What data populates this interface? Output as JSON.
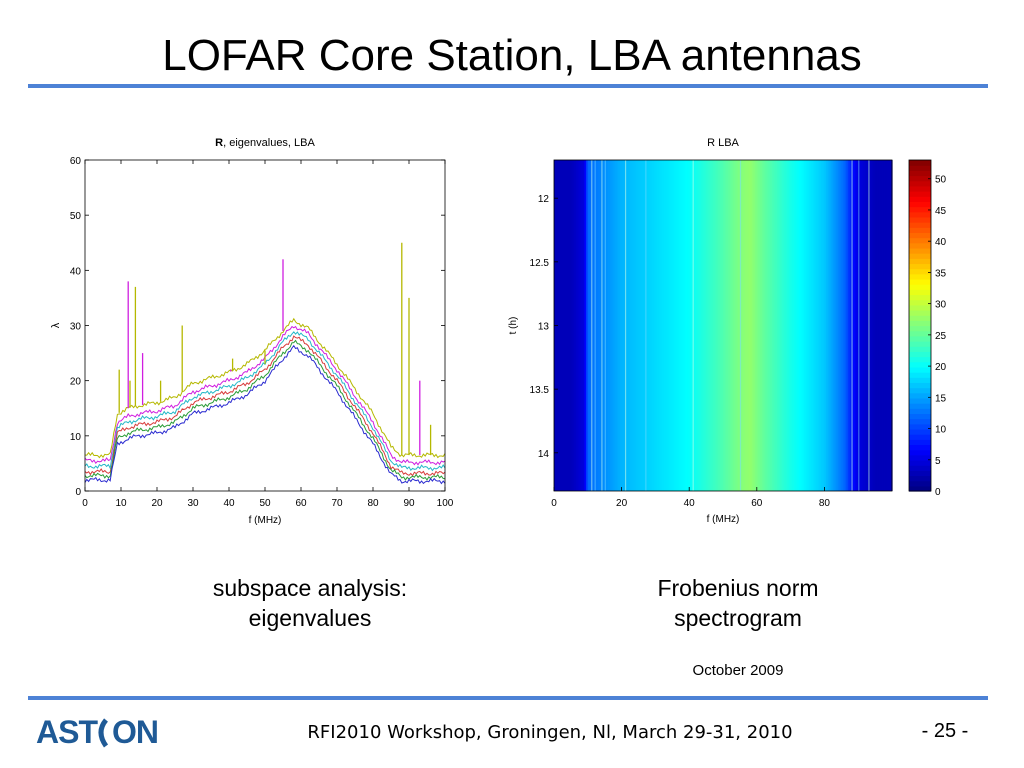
{
  "slide": {
    "title": "LOFAR Core Station, LBA antennas",
    "footer": "RFI2010 Workshop, Groningen, Nl, March 29-31, 2010",
    "page_number": "- 25 -",
    "date": "October 2009",
    "logo_text": "ASTRON"
  },
  "captions": {
    "left_line1": "subspace analysis:",
    "left_line2": "eigenvalues",
    "right_line1": "Frobenius norm",
    "right_line2": "spectrogram"
  },
  "colors": {
    "accent_rule": "#4d82d6",
    "logo": "#1f5a96",
    "series": [
      "#b5b800",
      "#d01ee0",
      "#24b8c8",
      "#d83a3a",
      "#2a9c36",
      "#2a2ad0",
      "#e08a00"
    ]
  },
  "chart_data": [
    {
      "type": "line",
      "title_bold": "R",
      "title": ", eigenvalues, LBA",
      "xlabel": "f (MHz)",
      "ylabel": "λ",
      "xlim": [
        0,
        100
      ],
      "ylim": [
        0,
        60
      ],
      "xticks": [
        0,
        10,
        20,
        30,
        40,
        50,
        60,
        70,
        80,
        90,
        100
      ],
      "yticks": [
        0,
        10,
        20,
        30,
        40,
        50,
        60
      ],
      "grid": false,
      "x": [
        0,
        7,
        9,
        12,
        15,
        20,
        25,
        30,
        35,
        40,
        45,
        50,
        55,
        58,
        62,
        70,
        80,
        85,
        88,
        90,
        95,
        100
      ],
      "series": [
        {
          "values": [
            6.5,
            6.5,
            14,
            15,
            15.5,
            16,
            17,
            19.5,
            20.5,
            21.5,
            23,
            25.5,
            29,
            31,
            29.5,
            23,
            14,
            8,
            6.5,
            6.5,
            6.5,
            6.5
          ]
        },
        {
          "values": [
            5.5,
            5.5,
            12.5,
            13.5,
            14,
            14.5,
            15.5,
            18,
            19,
            20,
            21.5,
            24,
            28,
            30,
            28.5,
            22,
            12.5,
            6.5,
            5.2,
            5.2,
            5.2,
            5.2
          ]
        },
        {
          "values": [
            4.5,
            4.5,
            11.5,
            12.5,
            13,
            13.5,
            14.5,
            17,
            18,
            19,
            20.5,
            23,
            27,
            29,
            27.5,
            21,
            11.5,
            5.5,
            4.2,
            4.2,
            4.2,
            4.2
          ]
        },
        {
          "values": [
            3.5,
            3.5,
            10.5,
            11.5,
            12,
            12.5,
            13.5,
            16,
            17,
            18,
            19.5,
            22,
            26,
            28,
            26.5,
            20,
            10.5,
            4.5,
            3.2,
            3.2,
            3.2,
            3.2
          ]
        },
        {
          "values": [
            2.8,
            2.8,
            9.5,
            10.5,
            11,
            11.5,
            12.5,
            15,
            16,
            17,
            18.5,
            21,
            25,
            27,
            25.5,
            19,
            9.5,
            3.8,
            2.5,
            2.5,
            2.5,
            2.5
          ]
        },
        {
          "values": [
            2,
            2,
            8.5,
            9.5,
            10,
            10.5,
            11.5,
            14,
            15,
            16,
            17.5,
            20,
            24,
            26,
            24.5,
            18,
            8.5,
            3,
            1.8,
            1.8,
            1.8,
            1.8
          ]
        }
      ],
      "spikes": [
        {
          "x": 9.5,
          "y": 22
        },
        {
          "x": 12,
          "y": 38
        },
        {
          "x": 12.5,
          "y": 20
        },
        {
          "x": 14,
          "y": 37
        },
        {
          "x": 16,
          "y": 25
        },
        {
          "x": 21,
          "y": 20
        },
        {
          "x": 27,
          "y": 30
        },
        {
          "x": 40.5,
          "y": 22
        },
        {
          "x": 41,
          "y": 24
        },
        {
          "x": 50,
          "y": 23
        },
        {
          "x": 55,
          "y": 42
        },
        {
          "x": 88,
          "y": 45
        },
        {
          "x": 90,
          "y": 35
        },
        {
          "x": 93,
          "y": 20
        },
        {
          "x": 96,
          "y": 12
        }
      ]
    },
    {
      "type": "heatmap",
      "title": "R LBA",
      "xlabel": "f (MHz)",
      "ylabel": "t (h)",
      "xlim": [
        0,
        100
      ],
      "ylim": [
        11.7,
        14.3
      ],
      "xticks": [
        0,
        20,
        40,
        60,
        80
      ],
      "yticks": [
        12,
        12.5,
        13,
        13.5,
        14
      ],
      "colorbar": {
        "min": 0,
        "max": 53,
        "ticks": [
          0,
          5,
          10,
          15,
          20,
          25,
          30,
          35,
          40,
          45,
          50
        ]
      },
      "frequency_profile": {
        "x": [
          0,
          5,
          9,
          10,
          20,
          30,
          40,
          50,
          56,
          58,
          62,
          70,
          80,
          86,
          88,
          90,
          95,
          100
        ],
        "values": [
          3,
          3,
          5,
          12,
          16,
          18,
          20,
          24,
          27,
          27.5,
          25,
          21,
          17,
          12,
          8,
          5,
          3,
          3
        ]
      },
      "rfi_lines_mhz": [
        11,
        12,
        14,
        15,
        21,
        27,
        41,
        55,
        88,
        90,
        93
      ]
    }
  ]
}
